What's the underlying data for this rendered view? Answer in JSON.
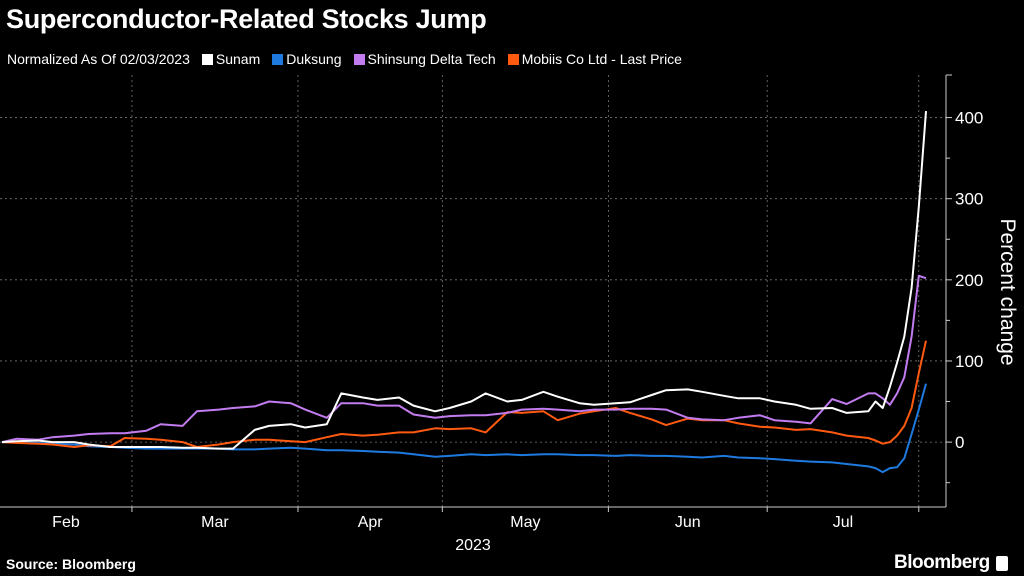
{
  "title": "Superconductor-Related Stocks Jump",
  "legend": {
    "note": "Normalized As Of 02/03/2023",
    "items": [
      {
        "label": "Sunam",
        "color": "#ffffff"
      },
      {
        "label": "Duksung",
        "color": "#1f7ae0"
      },
      {
        "label": "Shinsung Delta Tech",
        "color": "#c27cf0"
      },
      {
        "label": "Mobiis Co Ltd - Last Price",
        "color": "#ff5a10"
      }
    ]
  },
  "source": "Source: Bloomberg",
  "brand": "Bloomberg",
  "chart_data": {
    "type": "line",
    "title": "Superconductor-Related Stocks Jump",
    "ylabel": "Percent change",
    "xlabel": "2023",
    "ylim": [
      -80,
      450
    ],
    "yticks": [
      0,
      100,
      200,
      300,
      400
    ],
    "ytick_labels": [
      "0",
      "100",
      "200",
      "300",
      "400"
    ],
    "xtick_labels": [
      "Feb",
      "Mar",
      "Apr",
      "May",
      "Jun",
      "Jul"
    ],
    "xaxis_year": "2023",
    "grid": true,
    "legend_position": "top",
    "y_axis_side": "right",
    "x": [
      "2023-02-03",
      "2023-02-07",
      "2023-02-10",
      "2023-02-14",
      "2023-02-17",
      "2023-02-21",
      "2023-02-24",
      "2023-02-28",
      "2023-03-03",
      "2023-03-07",
      "2023-03-10",
      "2023-03-14",
      "2023-03-17",
      "2023-03-21",
      "2023-03-24",
      "2023-03-28",
      "2023-03-31",
      "2023-04-04",
      "2023-04-07",
      "2023-04-11",
      "2023-04-14",
      "2023-04-18",
      "2023-04-21",
      "2023-04-25",
      "2023-04-28",
      "2023-05-02",
      "2023-05-05",
      "2023-05-09",
      "2023-05-12",
      "2023-05-16",
      "2023-05-19",
      "2023-05-23",
      "2023-05-26",
      "2023-05-30",
      "2023-06-02",
      "2023-06-06",
      "2023-06-09",
      "2023-06-13",
      "2023-06-16",
      "2023-06-20",
      "2023-06-23",
      "2023-06-27",
      "2023-06-30",
      "2023-07-04",
      "2023-07-07",
      "2023-07-11",
      "2023-07-14",
      "2023-07-18",
      "2023-07-21",
      "2023-07-24",
      "2023-07-25",
      "2023-07-26",
      "2023-07-27",
      "2023-07-28",
      "2023-07-31",
      "2023-08-01",
      "2023-08-02"
    ],
    "series": [
      {
        "name": "Sunam",
        "color": "#ffffff",
        "values": [
          0,
          1,
          2,
          0,
          0,
          -3,
          -6,
          -6,
          -6,
          -6,
          -7,
          -7,
          -8,
          -8,
          15,
          20,
          22,
          18,
          22,
          60,
          55,
          52,
          55,
          45,
          38,
          42,
          50,
          60,
          50,
          52,
          62,
          56,
          48,
          46,
          48,
          49,
          58,
          64,
          65,
          62,
          57,
          54,
          54,
          50,
          46,
          41,
          42,
          36,
          38,
          50,
          42,
          68,
          98,
          130,
          190,
          290,
          408
        ]
      },
      {
        "name": "Duksung",
        "color": "#1f7ae0",
        "values": [
          0,
          0,
          -1,
          -2,
          -3,
          -5,
          -6,
          -7,
          -8,
          -8,
          -8,
          -8,
          -8,
          -9,
          -9,
          -8,
          -7,
          -8,
          -10,
          -10,
          -11,
          -12,
          -13,
          -15,
          -18,
          -17,
          -15,
          -16,
          -15,
          -16,
          -15,
          -15,
          -16,
          -16,
          -17,
          -16,
          -17,
          -17,
          -18,
          -19,
          -17,
          -19,
          -20,
          -21,
          -23,
          -24,
          -25,
          -27,
          -30,
          -32,
          -37,
          -32,
          -31,
          -20,
          10,
          40,
          72
        ]
      },
      {
        "name": "Shinsung Delta Tech",
        "color": "#c27cf0",
        "values": [
          0,
          4,
          3,
          6,
          8,
          10,
          11,
          11,
          14,
          22,
          20,
          38,
          40,
          42,
          44,
          50,
          48,
          40,
          30,
          48,
          48,
          45,
          45,
          34,
          30,
          32,
          33,
          33,
          36,
          40,
          41,
          40,
          38,
          40,
          40,
          41,
          41,
          40,
          30,
          28,
          27,
          30,
          33,
          27,
          25,
          23,
          53,
          47,
          60,
          60,
          54,
          46,
          60,
          80,
          130,
          205,
          202
        ]
      },
      {
        "name": "Mobiis Co Ltd - Last Price",
        "color": "#ff5a10",
        "values": [
          0,
          -1,
          -2,
          -3,
          -6,
          -4,
          -5,
          5,
          4,
          3,
          0,
          -6,
          -3,
          0,
          3,
          3,
          1,
          0,
          6,
          10,
          8,
          9,
          12,
          12,
          17,
          16,
          17,
          12,
          37,
          36,
          38,
          27,
          35,
          38,
          42,
          36,
          28,
          21,
          29,
          27,
          27,
          23,
          19,
          18,
          15,
          16,
          12,
          8,
          5,
          2,
          -2,
          0,
          8,
          20,
          42,
          85,
          125
        ]
      }
    ]
  }
}
